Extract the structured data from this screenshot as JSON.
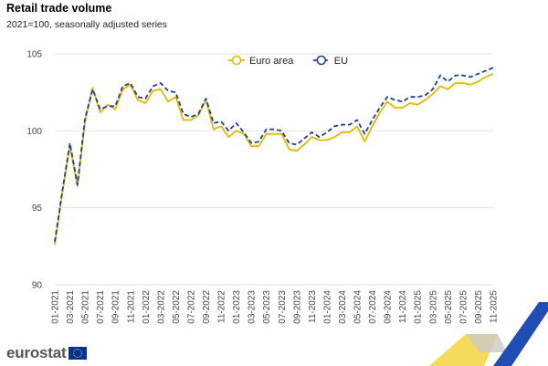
{
  "header": {
    "title": "Retail trade volume",
    "subtitle": "2021=100, seasonally adjusted series"
  },
  "brand": {
    "logo_text": "eurostat"
  },
  "colors": {
    "euro_area": "#e5b800",
    "eu": "#1f3f8f",
    "grid": "#e2e2e2"
  },
  "chart_data": {
    "type": "line",
    "title": "Retail trade volume",
    "subtitle": "2021=100, seasonally adjusted series",
    "xlabel": "",
    "ylabel": "",
    "ylim": [
      90,
      105
    ],
    "yticks": [
      90,
      95,
      100,
      105
    ],
    "grid": true,
    "legend_position": "top-center",
    "x": [
      "01-2021",
      "02-2021",
      "03-2021",
      "04-2021",
      "05-2021",
      "06-2021",
      "07-2021",
      "08-2021",
      "09-2021",
      "10-2021",
      "11-2021",
      "12-2021",
      "01-2022",
      "02-2022",
      "03-2022",
      "04-2022",
      "05-2022",
      "06-2022",
      "07-2022",
      "08-2022",
      "09-2022",
      "10-2022",
      "11-2022",
      "12-2022",
      "01-2023",
      "02-2023",
      "03-2023",
      "04-2023",
      "05-2023",
      "06-2023",
      "07-2023",
      "08-2023",
      "09-2023",
      "10-2023",
      "11-2023",
      "12-2023",
      "01-2024",
      "02-2024",
      "03-2024",
      "04-2024",
      "05-2024",
      "06-2024",
      "07-2024",
      "08-2024",
      "09-2024",
      "10-2024",
      "11-2024",
      "12-2024",
      "01-2025",
      "02-2025",
      "03-2025",
      "04-2025",
      "05-2025",
      "06-2025",
      "07-2025",
      "08-2025",
      "09-2025",
      "10-2025",
      "11-2025"
    ],
    "xtick_labels": [
      "01-2021",
      "03-2021",
      "05-2021",
      "07-2021",
      "09-2021",
      "11-2021",
      "01-2022",
      "03-2022",
      "05-2022",
      "07-2022",
      "09-2022",
      "11-2022",
      "01-2023",
      "03-2023",
      "05-2023",
      "07-2023",
      "09-2023",
      "11-2023",
      "01-2024",
      "03-2024",
      "05-2024",
      "07-2024",
      "09-2024",
      "11-2024",
      "01-2025",
      "03-2025",
      "05-2025",
      "07-2025",
      "09-2025",
      "11-2025"
    ],
    "series": [
      {
        "name": "Euro area",
        "color": "#e5b800",
        "dashed": false,
        "values": [
          92.6,
          96.0,
          99.0,
          96.4,
          100.6,
          102.8,
          101.2,
          101.7,
          101.4,
          102.7,
          103.0,
          102.0,
          101.8,
          102.6,
          102.7,
          101.9,
          102.2,
          100.7,
          100.7,
          101.0,
          102.0,
          100.1,
          100.3,
          99.6,
          100.0,
          99.8,
          99.0,
          99.0,
          99.8,
          99.8,
          99.8,
          98.8,
          98.7,
          99.1,
          99.6,
          99.4,
          99.4,
          99.6,
          99.9,
          99.9,
          100.3,
          99.3,
          100.3,
          101.2,
          101.9,
          101.5,
          101.5,
          101.8,
          101.7,
          102.0,
          102.4,
          102.9,
          102.7,
          103.1,
          103.1,
          103.0,
          103.2,
          103.5,
          103.7
        ]
      },
      {
        "name": "EU",
        "color": "#1f3f8f",
        "dashed": true,
        "values": [
          92.8,
          96.1,
          99.2,
          96.5,
          100.8,
          102.7,
          101.4,
          101.6,
          101.6,
          102.9,
          103.1,
          102.2,
          102.1,
          102.9,
          103.1,
          102.6,
          102.5,
          101.1,
          100.9,
          101.1,
          102.1,
          100.5,
          100.6,
          100.0,
          100.5,
          99.9,
          99.2,
          99.3,
          100.1,
          100.1,
          100.0,
          99.2,
          99.1,
          99.5,
          99.9,
          99.6,
          99.9,
          100.3,
          100.4,
          100.4,
          100.7,
          99.8,
          100.7,
          101.5,
          102.2,
          102.0,
          101.9,
          102.2,
          102.2,
          102.3,
          102.7,
          103.6,
          103.2,
          103.6,
          103.6,
          103.5,
          103.7,
          103.9,
          104.1
        ]
      }
    ]
  }
}
